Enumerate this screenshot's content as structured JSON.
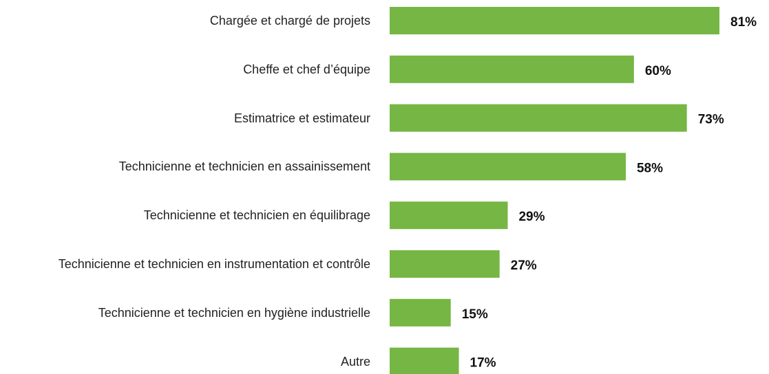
{
  "chart_data": {
    "type": "barh",
    "categories": [
      "Chargée et chargé de projets",
      "Cheffe et chef d’équipe",
      "Estimatrice et estimateur",
      "Technicienne et technicien en assainissement",
      "Technicienne et technicien en équilibrage",
      "Technicienne et technicien en instrumentation et contrôle",
      "Technicienne et technicien en hygiène industrielle",
      "Autre"
    ],
    "values": [
      81,
      60,
      73,
      58,
      29,
      27,
      15,
      17
    ],
    "value_labels": [
      "81%",
      "60%",
      "73%",
      "58%",
      "29%",
      "27%",
      "15%",
      "17%"
    ],
    "color": "#76b644"
  }
}
